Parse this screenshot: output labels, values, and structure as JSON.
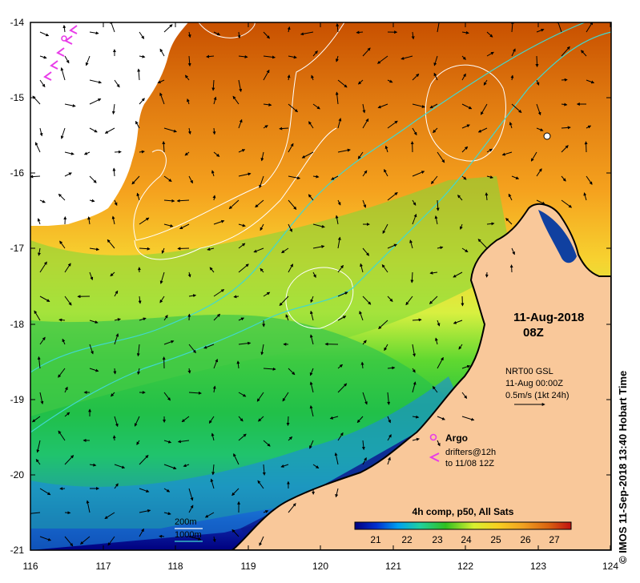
{
  "map": {
    "date": "11-Aug-2018",
    "time": "08Z",
    "lon_ticks": [
      "116",
      "117",
      "118",
      "119",
      "120",
      "121",
      "122",
      "123",
      "124"
    ],
    "lat_ticks": [
      "-14",
      "-15",
      "-16",
      "-17",
      "-18",
      "-19",
      "-20",
      "-21"
    ],
    "current_info": {
      "line1": "NRT00 GSL",
      "line2": "11-Aug 00:00Z",
      "line3": "0.5m/s (1kt 24h)"
    },
    "argo_label": "Argo",
    "drifter_label_1": "drifters@12h",
    "drifter_label_2": "to 11/08 12Z",
    "colorbar": {
      "title": "4h comp, p50, All Sats",
      "ticks": [
        "21",
        "22",
        "23",
        "24",
        "25",
        "26",
        "27"
      ]
    },
    "contour_legend": {
      "c200": "200m",
      "c1000": "1000m"
    },
    "credit": "© IMOS 11-Sep-2018 13:40 Hobart Time",
    "colors": {
      "land": "#f9c89a",
      "coast": "#000000",
      "isobath_200": "#ffffff",
      "isobath_1000": "#40d8d0",
      "argo_drifter": "#e83ce8"
    }
  }
}
